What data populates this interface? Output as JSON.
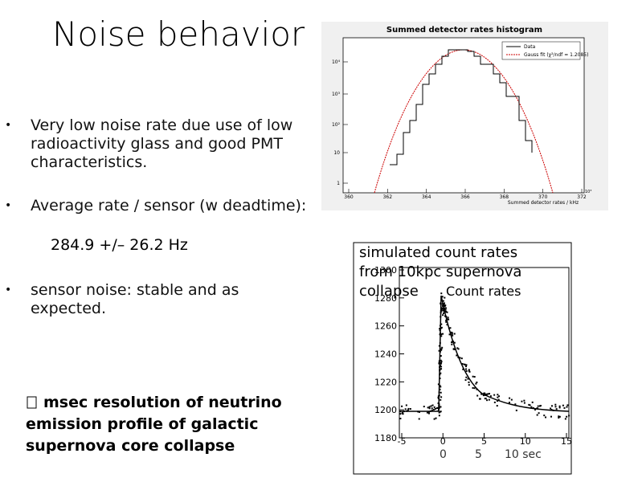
{
  "title": "Noise behavior",
  "bullets": [
    "Very low noise rate due use of low radioactivity glass and good PMT characteristics.",
    "Average rate / sensor (w deadtime):",
    "sensor noise: stable and as expected."
  ],
  "rate": "284.9 +/– 26.2 Hz",
  "conclusion": "msec resolution of neutrino emission profile of galactic supernova core collapse",
  "histogram": {
    "title": "Summed detector rates histogram",
    "legend": [
      "Data",
      "Gauss fit (χ²/ndf = 1.2085)"
    ],
    "xlabel": "Summed detector rates / kHz",
    "x_exponent": "10³",
    "xticks": [
      "360",
      "362",
      "364",
      "366",
      "368",
      "370",
      "372"
    ],
    "yticks": [
      "10⁴",
      "10³",
      "10²",
      "10",
      "1"
    ]
  },
  "count_plot": {
    "caption": "simulated count rates from 10kpc supernova collapse",
    "legend": "Count rates",
    "yticks": [
      "1300",
      "1280",
      "1260",
      "1240",
      "1220",
      "1200",
      "1180"
    ],
    "xticks": [
      "-5",
      "0",
      "5",
      "10",
      "15"
    ],
    "time_labels": [
      "0",
      "5",
      "10 sec"
    ]
  }
}
